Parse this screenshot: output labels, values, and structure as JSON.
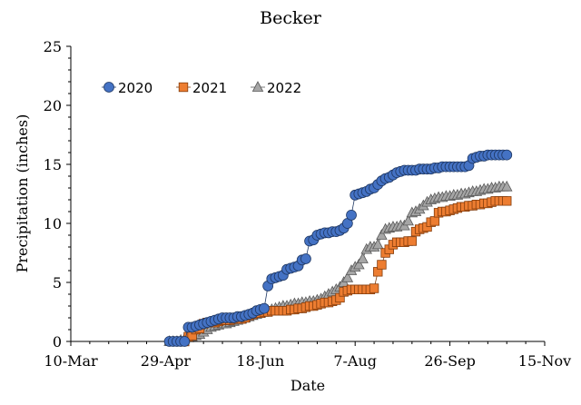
{
  "chart_data": {
    "type": "scatter",
    "title": "Becker",
    "xlabel": "Date",
    "ylabel": "Precipitation (inches)",
    "xlim": [
      "2020-03-10",
      "2020-11-15"
    ],
    "ylim": [
      0,
      25
    ],
    "x_ticks": [
      "10-Mar",
      "29-Apr",
      "18-Jun",
      "7-Aug",
      "26-Sep",
      "15-Nov"
    ],
    "y_ticks": [
      "0",
      "5",
      "10",
      "15",
      "20",
      "25"
    ],
    "grid": false,
    "legend_position": "top-left",
    "series": [
      {
        "name": "2020",
        "marker": "circle",
        "color": "#4472C4",
        "edge": "#1F3864",
        "points": [
          [
            "05-01",
            0
          ],
          [
            "05-03",
            0
          ],
          [
            "05-05",
            0
          ],
          [
            "05-07",
            0
          ],
          [
            "05-09",
            0
          ],
          [
            "05-11",
            1.2
          ],
          [
            "05-13",
            1.2
          ],
          [
            "05-15",
            1.3
          ],
          [
            "05-17",
            1.4
          ],
          [
            "05-19",
            1.5
          ],
          [
            "05-21",
            1.6
          ],
          [
            "05-23",
            1.7
          ],
          [
            "05-25",
            1.8
          ],
          [
            "05-27",
            1.9
          ],
          [
            "05-29",
            2.0
          ],
          [
            "05-31",
            2.0
          ],
          [
            "06-02",
            2.0
          ],
          [
            "06-04",
            2.0
          ],
          [
            "06-06",
            2.1
          ],
          [
            "06-08",
            2.1
          ],
          [
            "06-10",
            2.2
          ],
          [
            "06-12",
            2.3
          ],
          [
            "06-14",
            2.4
          ],
          [
            "06-16",
            2.6
          ],
          [
            "06-18",
            2.7
          ],
          [
            "06-20",
            2.8
          ],
          [
            "06-22",
            4.7
          ],
          [
            "06-24",
            5.3
          ],
          [
            "06-26",
            5.4
          ],
          [
            "06-28",
            5.5
          ],
          [
            "06-30",
            5.6
          ],
          [
            "07-02",
            6.1
          ],
          [
            "07-04",
            6.2
          ],
          [
            "07-06",
            6.3
          ],
          [
            "07-08",
            6.4
          ],
          [
            "07-10",
            6.9
          ],
          [
            "07-12",
            7.0
          ],
          [
            "07-14",
            8.5
          ],
          [
            "07-16",
            8.6
          ],
          [
            "07-18",
            9.0
          ],
          [
            "07-20",
            9.1
          ],
          [
            "07-22",
            9.2
          ],
          [
            "07-24",
            9.2
          ],
          [
            "07-26",
            9.3
          ],
          [
            "07-28",
            9.3
          ],
          [
            "07-30",
            9.4
          ],
          [
            "08-01",
            9.6
          ],
          [
            "08-03",
            10.0
          ],
          [
            "08-05",
            10.7
          ],
          [
            "08-07",
            12.4
          ],
          [
            "08-09",
            12.5
          ],
          [
            "08-11",
            12.6
          ],
          [
            "08-13",
            12.7
          ],
          [
            "08-15",
            12.9
          ],
          [
            "08-17",
            13.0
          ],
          [
            "08-19",
            13.3
          ],
          [
            "08-21",
            13.6
          ],
          [
            "08-23",
            13.8
          ],
          [
            "08-25",
            13.9
          ],
          [
            "08-27",
            14.1
          ],
          [
            "08-29",
            14.3
          ],
          [
            "08-31",
            14.4
          ],
          [
            "09-02",
            14.5
          ],
          [
            "09-04",
            14.5
          ],
          [
            "09-06",
            14.5
          ],
          [
            "09-08",
            14.5
          ],
          [
            "09-10",
            14.6
          ],
          [
            "09-12",
            14.6
          ],
          [
            "09-14",
            14.6
          ],
          [
            "09-16",
            14.6
          ],
          [
            "09-18",
            14.7
          ],
          [
            "09-20",
            14.7
          ],
          [
            "09-22",
            14.8
          ],
          [
            "09-24",
            14.8
          ],
          [
            "09-26",
            14.8
          ],
          [
            "09-28",
            14.8
          ],
          [
            "09-30",
            14.8
          ],
          [
            "10-02",
            14.8
          ],
          [
            "10-04",
            14.8
          ],
          [
            "10-06",
            14.9
          ],
          [
            "10-08",
            15.5
          ],
          [
            "10-10",
            15.6
          ],
          [
            "10-12",
            15.7
          ],
          [
            "10-14",
            15.7
          ],
          [
            "10-16",
            15.8
          ],
          [
            "10-18",
            15.8
          ],
          [
            "10-20",
            15.8
          ],
          [
            "10-22",
            15.8
          ],
          [
            "10-24",
            15.8
          ],
          [
            "10-26",
            15.8
          ]
        ]
      },
      {
        "name": "2021",
        "marker": "square",
        "color": "#ED7D31",
        "edge": "#843C0C",
        "points": [
          [
            "05-05",
            0
          ],
          [
            "05-07",
            0
          ],
          [
            "05-09",
            0
          ],
          [
            "05-11",
            0.4
          ],
          [
            "05-13",
            0.5
          ],
          [
            "05-15",
            1.0
          ],
          [
            "05-17",
            1.1
          ],
          [
            "05-19",
            1.5
          ],
          [
            "05-21",
            1.6
          ],
          [
            "05-23",
            1.6
          ],
          [
            "05-25",
            1.6
          ],
          [
            "05-27",
            1.7
          ],
          [
            "05-29",
            1.8
          ],
          [
            "05-31",
            1.8
          ],
          [
            "06-02",
            1.8
          ],
          [
            "06-04",
            1.9
          ],
          [
            "06-06",
            1.9
          ],
          [
            "06-08",
            1.9
          ],
          [
            "06-10",
            2.0
          ],
          [
            "06-12",
            2.2
          ],
          [
            "06-14",
            2.3
          ],
          [
            "06-16",
            2.4
          ],
          [
            "06-18",
            2.4
          ],
          [
            "06-20",
            2.5
          ],
          [
            "06-22",
            2.5
          ],
          [
            "06-24",
            2.6
          ],
          [
            "06-26",
            2.6
          ],
          [
            "06-28",
            2.6
          ],
          [
            "06-30",
            2.6
          ],
          [
            "07-02",
            2.6
          ],
          [
            "07-04",
            2.7
          ],
          [
            "07-06",
            2.7
          ],
          [
            "07-08",
            2.8
          ],
          [
            "07-10",
            2.8
          ],
          [
            "07-12",
            2.9
          ],
          [
            "07-14",
            3.0
          ],
          [
            "07-16",
            3.0
          ],
          [
            "07-18",
            3.1
          ],
          [
            "07-20",
            3.2
          ],
          [
            "07-22",
            3.3
          ],
          [
            "07-24",
            3.3
          ],
          [
            "07-26",
            3.4
          ],
          [
            "07-28",
            3.5
          ],
          [
            "07-30",
            3.7
          ],
          [
            "08-01",
            4.2
          ],
          [
            "08-03",
            4.3
          ],
          [
            "08-05",
            4.4
          ],
          [
            "08-07",
            4.4
          ],
          [
            "08-09",
            4.4
          ],
          [
            "08-11",
            4.4
          ],
          [
            "08-13",
            4.4
          ],
          [
            "08-15",
            4.4
          ],
          [
            "08-17",
            4.5
          ],
          [
            "08-19",
            5.9
          ],
          [
            "08-21",
            6.5
          ],
          [
            "08-23",
            7.5
          ],
          [
            "08-25",
            7.8
          ],
          [
            "08-27",
            8.2
          ],
          [
            "08-29",
            8.4
          ],
          [
            "08-31",
            8.4
          ],
          [
            "09-02",
            8.4
          ],
          [
            "09-04",
            8.5
          ],
          [
            "09-06",
            8.5
          ],
          [
            "09-08",
            9.3
          ],
          [
            "09-10",
            9.5
          ],
          [
            "09-12",
            9.6
          ],
          [
            "09-14",
            9.7
          ],
          [
            "09-16",
            10.1
          ],
          [
            "09-18",
            10.2
          ],
          [
            "09-20",
            10.9
          ],
          [
            "09-22",
            11.0
          ],
          [
            "09-24",
            11.0
          ],
          [
            "09-26",
            11.1
          ],
          [
            "09-28",
            11.2
          ],
          [
            "09-30",
            11.3
          ],
          [
            "10-02",
            11.4
          ],
          [
            "10-04",
            11.4
          ],
          [
            "10-06",
            11.5
          ],
          [
            "10-08",
            11.5
          ],
          [
            "10-10",
            11.6
          ],
          [
            "10-12",
            11.6
          ],
          [
            "10-14",
            11.7
          ],
          [
            "10-16",
            11.7
          ],
          [
            "10-18",
            11.8
          ],
          [
            "10-20",
            11.9
          ],
          [
            "10-22",
            11.9
          ],
          [
            "10-24",
            11.9
          ],
          [
            "10-26",
            11.9
          ]
        ]
      },
      {
        "name": "2022",
        "marker": "triangle",
        "color": "#A6A6A6",
        "edge": "#595959",
        "points": [
          [
            "05-01",
            0
          ],
          [
            "05-03",
            0
          ],
          [
            "05-05",
            0
          ],
          [
            "05-07",
            0.1
          ],
          [
            "05-09",
            0.2
          ],
          [
            "05-11",
            0.3
          ],
          [
            "05-13",
            0.4
          ],
          [
            "05-15",
            0.5
          ],
          [
            "05-17",
            0.6
          ],
          [
            "05-19",
            0.8
          ],
          [
            "05-21",
            1.0
          ],
          [
            "05-23",
            1.2
          ],
          [
            "05-25",
            1.3
          ],
          [
            "05-27",
            1.4
          ],
          [
            "05-29",
            1.5
          ],
          [
            "05-31",
            1.5
          ],
          [
            "06-02",
            1.6
          ],
          [
            "06-04",
            1.7
          ],
          [
            "06-06",
            1.8
          ],
          [
            "06-08",
            1.9
          ],
          [
            "06-10",
            2.0
          ],
          [
            "06-12",
            2.1
          ],
          [
            "06-14",
            2.2
          ],
          [
            "06-16",
            2.3
          ],
          [
            "06-18",
            2.4
          ],
          [
            "06-20",
            2.5
          ],
          [
            "06-22",
            2.6
          ],
          [
            "06-24",
            2.7
          ],
          [
            "06-26",
            2.8
          ],
          [
            "06-28",
            2.9
          ],
          [
            "06-30",
            3.0
          ],
          [
            "07-02",
            3.0
          ],
          [
            "07-04",
            3.1
          ],
          [
            "07-06",
            3.2
          ],
          [
            "07-08",
            3.2
          ],
          [
            "07-10",
            3.3
          ],
          [
            "07-12",
            3.3
          ],
          [
            "07-14",
            3.4
          ],
          [
            "07-16",
            3.4
          ],
          [
            "07-18",
            3.5
          ],
          [
            "07-20",
            3.6
          ],
          [
            "07-22",
            3.8
          ],
          [
            "07-24",
            4.0
          ],
          [
            "07-26",
            4.2
          ],
          [
            "07-28",
            4.4
          ],
          [
            "07-30",
            4.6
          ],
          [
            "08-01",
            5.0
          ],
          [
            "08-03",
            5.4
          ],
          [
            "08-05",
            6.0
          ],
          [
            "08-07",
            6.3
          ],
          [
            "08-09",
            6.5
          ],
          [
            "08-11",
            7.0
          ],
          [
            "08-13",
            7.8
          ],
          [
            "08-15",
            8.0
          ],
          [
            "08-17",
            8.0
          ],
          [
            "08-19",
            8.2
          ],
          [
            "08-21",
            9.0
          ],
          [
            "08-23",
            9.5
          ],
          [
            "08-25",
            9.6
          ],
          [
            "08-27",
            9.7
          ],
          [
            "08-29",
            9.7
          ],
          [
            "08-31",
            9.8
          ],
          [
            "09-02",
            9.8
          ],
          [
            "09-04",
            10.2
          ],
          [
            "09-06",
            10.9
          ],
          [
            "09-08",
            11.0
          ],
          [
            "09-10",
            11.2
          ],
          [
            "09-12",
            11.5
          ],
          [
            "09-14",
            11.8
          ],
          [
            "09-16",
            12.0
          ],
          [
            "09-18",
            12.1
          ],
          [
            "09-20",
            12.2
          ],
          [
            "09-22",
            12.2
          ],
          [
            "09-24",
            12.3
          ],
          [
            "09-26",
            12.3
          ],
          [
            "09-28",
            12.4
          ],
          [
            "09-30",
            12.4
          ],
          [
            "10-02",
            12.5
          ],
          [
            "10-04",
            12.5
          ],
          [
            "10-06",
            12.6
          ],
          [
            "10-08",
            12.7
          ],
          [
            "10-10",
            12.7
          ],
          [
            "10-12",
            12.8
          ],
          [
            "10-14",
            12.9
          ],
          [
            "10-16",
            12.9
          ],
          [
            "10-18",
            13.0
          ],
          [
            "10-20",
            13.0
          ],
          [
            "10-22",
            13.1
          ],
          [
            "10-24",
            13.1
          ],
          [
            "10-26",
            13.1
          ]
        ]
      }
    ]
  }
}
